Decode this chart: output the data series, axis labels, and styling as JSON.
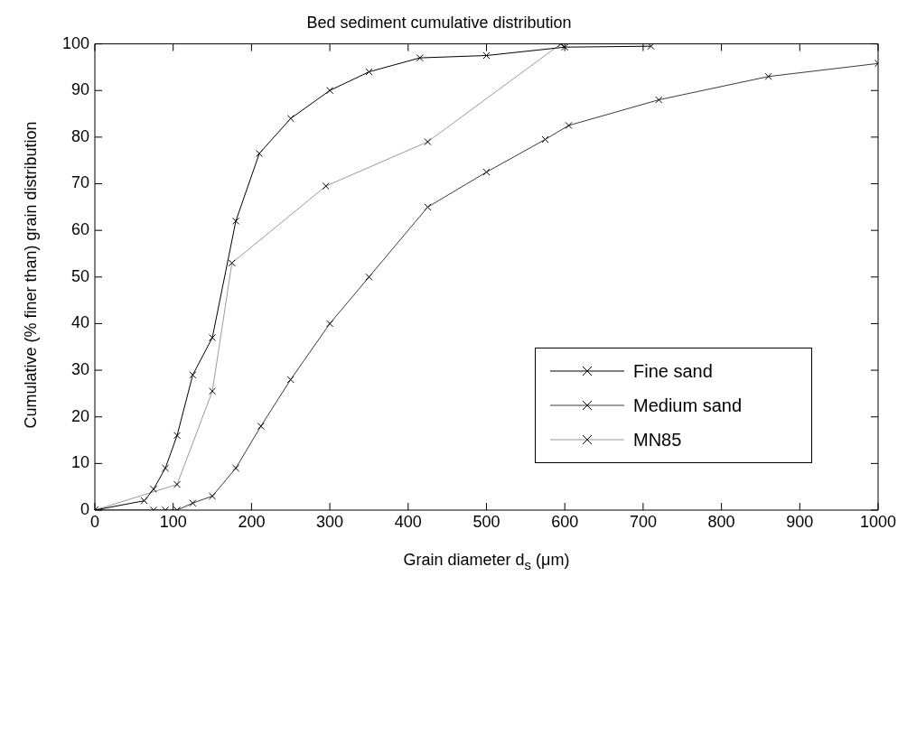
{
  "chart_data": {
    "type": "line",
    "title": "Bed sediment cumulative distribution",
    "xlabel": "Grain diameter d$_{s}$ (μm)",
    "ylabel": "Cumulative (% finer than) grain distribution",
    "xlim": [
      0,
      1000
    ],
    "xticks": [
      0,
      100,
      200,
      300,
      400,
      500,
      600,
      700,
      800,
      900,
      1000
    ],
    "ylim": [
      0,
      100
    ],
    "yticks": [
      0,
      10,
      20,
      30,
      40,
      50,
      60,
      70,
      80,
      90,
      100
    ],
    "grid": false,
    "legend": "right",
    "marker": "cross",
    "line_style": "solid",
    "series": [
      {
        "name": "Fine sand",
        "color": "#000000",
        "x": [
          0,
          63,
          75,
          90,
          105,
          125,
          150,
          180,
          210,
          250,
          300,
          350,
          415,
          500,
          600,
          710
        ],
        "values": [
          0,
          2,
          4.5,
          9,
          16,
          29,
          37,
          62,
          76.5,
          84,
          90,
          94,
          97,
          97.5,
          99.3,
          99.5
        ]
      },
      {
        "name": "Medium sand",
        "color": "#3a3a3a",
        "x": [
          0,
          75,
          90,
          105,
          125,
          150,
          180,
          212,
          250,
          300,
          350,
          425,
          500,
          575,
          605,
          720,
          860,
          1000
        ],
        "values": [
          0,
          0,
          0,
          0,
          1.5,
          3,
          9,
          18,
          28,
          40,
          50,
          65,
          72.5,
          79.5,
          82.5,
          88,
          93,
          95.8
        ]
      },
      {
        "name": "MN85",
        "color": "#9a9a9a",
        "x": [
          0,
          105,
          150,
          175,
          295,
          425,
          595
        ],
        "values": [
          0,
          5.5,
          25.5,
          53,
          69.5,
          79,
          100
        ]
      }
    ]
  }
}
